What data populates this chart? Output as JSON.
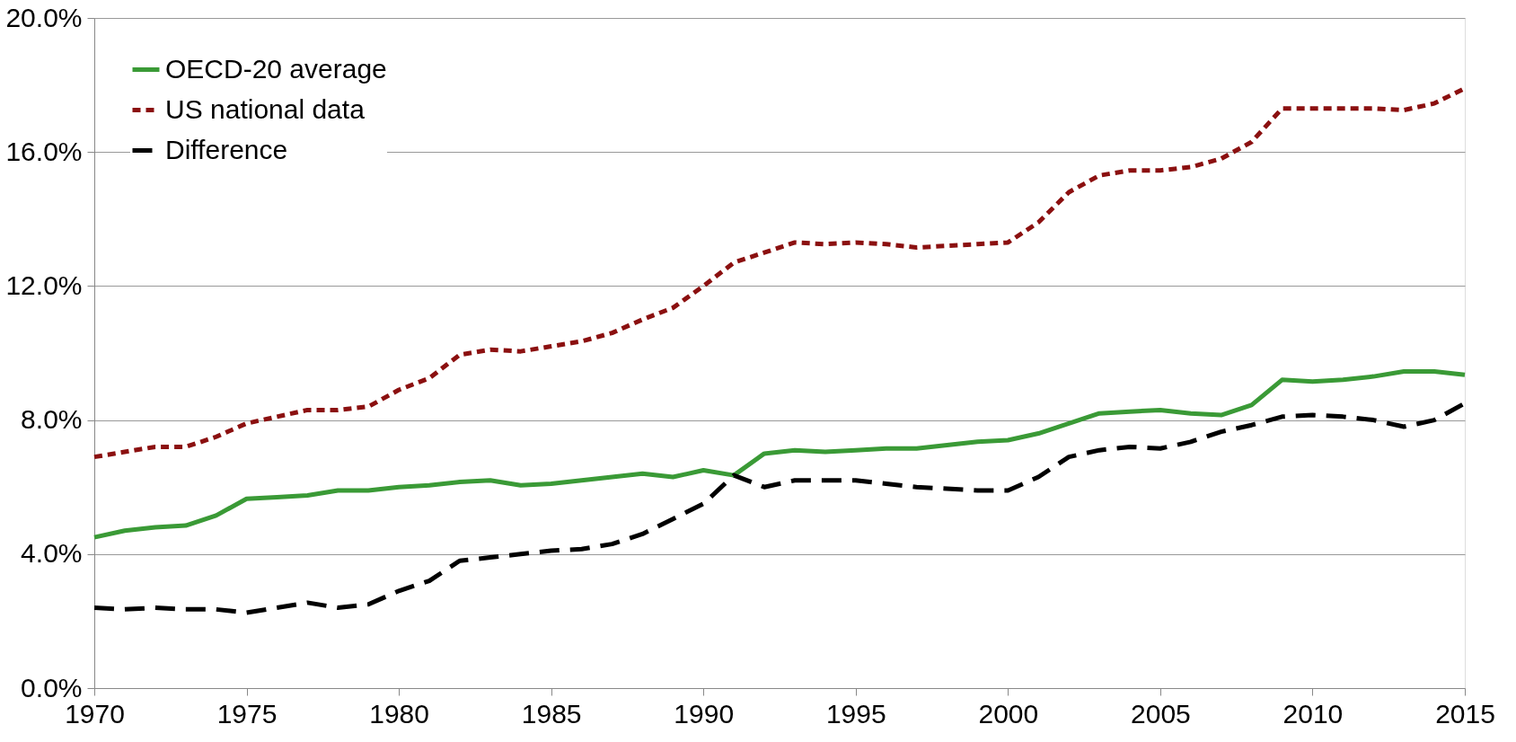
{
  "chart_data": {
    "type": "line",
    "x": [
      1970,
      1971,
      1972,
      1973,
      1974,
      1975,
      1976,
      1977,
      1978,
      1979,
      1980,
      1981,
      1982,
      1983,
      1984,
      1985,
      1986,
      1987,
      1988,
      1989,
      1990,
      1991,
      1992,
      1993,
      1994,
      1995,
      1996,
      1997,
      1998,
      1999,
      2000,
      2001,
      2002,
      2003,
      2004,
      2005,
      2006,
      2007,
      2008,
      2009,
      2010,
      2011,
      2012,
      2013,
      2014,
      2015
    ],
    "series": [
      {
        "name": "OECD-20 average",
        "color": "#3a9a36",
        "line_style": "solid",
        "values": [
          4.5,
          4.7,
          4.8,
          4.85,
          5.15,
          5.65,
          5.7,
          5.75,
          5.9,
          5.9,
          6.0,
          6.05,
          6.15,
          6.2,
          6.05,
          6.1,
          6.2,
          6.3,
          6.4,
          6.3,
          6.5,
          6.35,
          7.0,
          7.1,
          7.05,
          7.1,
          7.15,
          7.15,
          7.25,
          7.35,
          7.4,
          7.6,
          7.9,
          8.2,
          8.25,
          8.3,
          8.2,
          8.15,
          8.45,
          9.2,
          9.15,
          9.2,
          9.3,
          9.45,
          9.45,
          9.35
        ]
      },
      {
        "name": "US national data",
        "color": "#8b1010",
        "line_style": "dotted",
        "values": [
          6.9,
          7.05,
          7.2,
          7.2,
          7.5,
          7.9,
          8.1,
          8.3,
          8.3,
          8.4,
          8.9,
          9.25,
          9.95,
          10.1,
          10.05,
          10.2,
          10.35,
          10.6,
          11.0,
          11.35,
          12.0,
          12.7,
          13.0,
          13.3,
          13.25,
          13.3,
          13.25,
          13.15,
          13.2,
          13.25,
          13.3,
          13.9,
          14.8,
          15.3,
          15.45,
          15.45,
          15.55,
          15.8,
          16.3,
          17.3,
          17.3,
          17.3,
          17.3,
          17.25,
          17.45,
          17.9
        ]
      },
      {
        "name": "Difference",
        "color": "#000000",
        "line_style": "dashed",
        "values": [
          2.4,
          2.35,
          2.4,
          2.35,
          2.35,
          2.25,
          2.4,
          2.55,
          2.4,
          2.5,
          2.9,
          3.2,
          3.8,
          3.9,
          4.0,
          4.1,
          4.15,
          4.3,
          4.6,
          5.05,
          5.5,
          6.35,
          6.0,
          6.2,
          6.2,
          6.2,
          6.1,
          6.0,
          5.95,
          5.9,
          5.9,
          6.3,
          6.9,
          7.1,
          7.2,
          7.15,
          7.35,
          7.65,
          7.85,
          8.1,
          8.15,
          8.1,
          8.0,
          7.8,
          8.0,
          8.5
        ]
      }
    ],
    "xlim": [
      1970,
      2015
    ],
    "xticks": [
      1970,
      1975,
      1980,
      1985,
      1990,
      1995,
      2000,
      2005,
      2010,
      2015
    ],
    "ylim": [
      0,
      20
    ],
    "yticks": [
      {
        "value": 0,
        "label": "0.0%"
      },
      {
        "value": 4,
        "label": "4.0%"
      },
      {
        "value": 8,
        "label": "8.0%"
      },
      {
        "value": 12,
        "label": "12.0%"
      },
      {
        "value": 16,
        "label": "16.0%"
      },
      {
        "value": 20,
        "label": "20.0%"
      }
    ],
    "grid": "y",
    "legend": "top left",
    "marker": "none"
  }
}
